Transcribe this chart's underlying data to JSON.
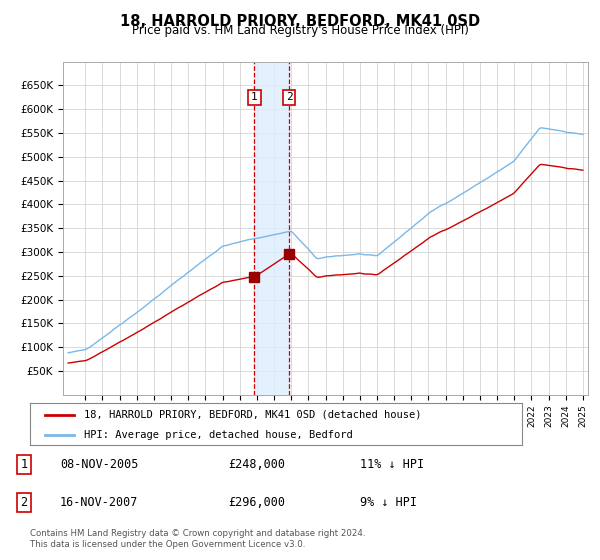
{
  "title": "18, HARROLD PRIORY, BEDFORD, MK41 0SD",
  "subtitle": "Price paid vs. HM Land Registry's House Price Index (HPI)",
  "legend_line1": "18, HARROLD PRIORY, BEDFORD, MK41 0SD (detached house)",
  "legend_line2": "HPI: Average price, detached house, Bedford",
  "footer": "Contains HM Land Registry data © Crown copyright and database right 2024.\nThis data is licensed under the Open Government Licence v3.0.",
  "sale1_label": "1",
  "sale1_date": "08-NOV-2005",
  "sale1_price": "£248,000",
  "sale1_hpi": "11% ↓ HPI",
  "sale2_label": "2",
  "sale2_date": "16-NOV-2007",
  "sale2_price": "£296,000",
  "sale2_hpi": "9% ↓ HPI",
  "sale1_year": 2005.86,
  "sale2_year": 2007.88,
  "sale1_value": 248000,
  "sale2_value": 296000,
  "hpi_color": "#7ab8e8",
  "price_color": "#cc0000",
  "sale_marker_color": "#990000",
  "vline_color": "#cc0000",
  "shade_color": "#ddeeff",
  "grid_color": "#cccccc",
  "bg_color": "#ffffff",
  "ylim_min": 0,
  "ylim_max": 700000,
  "ytick_step": 50000,
  "xstart": 1995,
  "xend": 2025
}
